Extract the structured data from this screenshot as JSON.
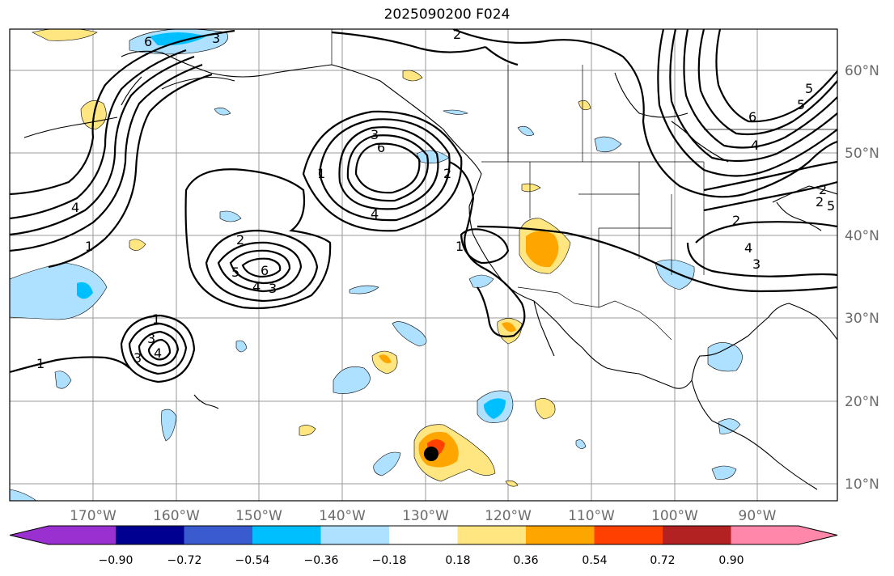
{
  "title": "2025090200 F024",
  "lon_labels": [
    "170°W",
    "160°W",
    "150°W",
    "140°W",
    "130°W",
    "120°W",
    "110°W",
    "100°W",
    "90°W"
  ],
  "lat_labels": [
    "60°N",
    "50°N",
    "40°N",
    "30°N",
    "20°N",
    "10°N"
  ],
  "colorbar": {
    "ticks": [
      "−0.90",
      "−0.72",
      "−0.54",
      "−0.36",
      "−0.18",
      "0.18",
      "0.36",
      "0.54",
      "0.72",
      "0.90"
    ],
    "colors": [
      "#9b30d0",
      "#000090",
      "#3a5bd0",
      "#00bfff",
      "#aee0ff",
      "#ffffff",
      "#ffe680",
      "#ffa500",
      "#ff4000",
      "#b22222",
      "#ff88aa"
    ]
  },
  "contour_labels": [
    "6",
    "3",
    "2",
    "4",
    "1",
    "3",
    "6",
    "4",
    "1",
    "2",
    "2",
    "3",
    "5",
    "6",
    "4",
    "3",
    "1",
    "3",
    "4",
    "1",
    "1",
    "2",
    "2",
    "4",
    "5",
    "6",
    "5",
    "4",
    "2",
    "5",
    "3"
  ],
  "marker": "storm-center"
}
